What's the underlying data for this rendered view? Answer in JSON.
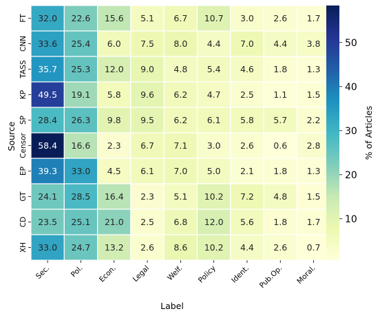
{
  "chart_data": {
    "type": "heatmap",
    "xlabel": "Label",
    "ylabel": "Source",
    "x_categories": [
      "Sec.",
      "Pol.",
      "Econ.",
      "Legal",
      "Welf.",
      "Policy",
      "Ident.",
      "Pub.Op.",
      "Moral."
    ],
    "y_categories": [
      "FT",
      "CNN",
      "TASS",
      "KP",
      "SP",
      "Censor",
      "EP",
      "GT",
      "CD",
      "XH"
    ],
    "values": [
      [
        32.0,
        22.6,
        15.6,
        5.1,
        6.7,
        10.7,
        3.0,
        2.6,
        1.7
      ],
      [
        33.6,
        25.4,
        6.0,
        7.5,
        8.0,
        4.4,
        7.0,
        4.4,
        3.8
      ],
      [
        35.7,
        25.3,
        12.0,
        9.0,
        4.8,
        5.4,
        4.6,
        1.8,
        1.3
      ],
      [
        49.5,
        19.1,
        5.8,
        9.6,
        6.2,
        4.7,
        2.5,
        1.1,
        1.5
      ],
      [
        28.4,
        26.3,
        9.8,
        9.5,
        6.2,
        6.1,
        5.8,
        5.7,
        2.2
      ],
      [
        58.4,
        16.6,
        2.3,
        6.7,
        7.1,
        3.0,
        2.6,
        0.6,
        2.8
      ],
      [
        39.3,
        33.0,
        4.5,
        6.1,
        7.0,
        5.0,
        2.1,
        1.8,
        1.3
      ],
      [
        24.1,
        28.5,
        16.4,
        2.3,
        5.1,
        10.2,
        7.2,
        4.8,
        1.5
      ],
      [
        23.5,
        25.1,
        21.0,
        2.5,
        6.8,
        12.0,
        5.6,
        1.8,
        1.7
      ],
      [
        33.0,
        24.7,
        13.2,
        2.6,
        8.6,
        10.2,
        4.4,
        2.6,
        0.7
      ]
    ],
    "value_range": [
      0.6,
      58.4
    ],
    "colormap": "YlGnBu",
    "colorbar": {
      "label": "% of Articles",
      "ticks": [
        10,
        20,
        30,
        40,
        50
      ]
    },
    "grid": false,
    "legend": "colorbar-right"
  }
}
